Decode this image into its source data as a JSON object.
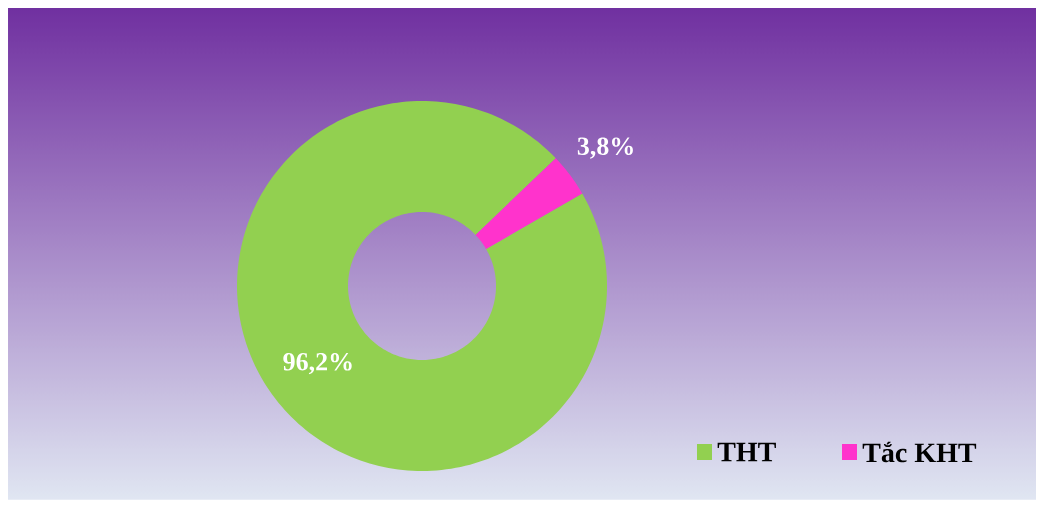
{
  "chart_data": {
    "type": "donut",
    "categories": [
      "THT",
      "Tắc KHT"
    ],
    "values": [
      96.2,
      3.8
    ],
    "colors": [
      "#92d050",
      "#ff33cc"
    ],
    "value_labels": [
      "96,2%",
      "3,8%"
    ],
    "legend": "bottom right"
  }
}
